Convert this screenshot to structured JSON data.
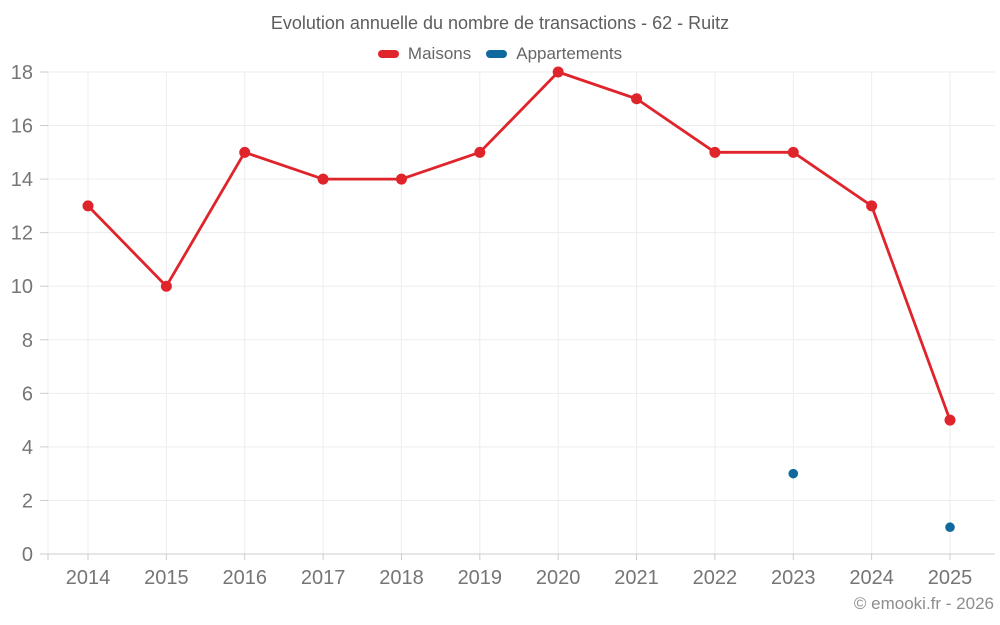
{
  "page": {
    "footer": "© emooki.fr - 2026"
  },
  "theme": {
    "background": "#ffffff",
    "grid_color": "#ededed",
    "axis_color": "#cccccc",
    "tick_label_color": "#757575",
    "title_color": "#5d5d5d",
    "legend_text_color": "#666666",
    "footer_color": "#8d8d8d"
  },
  "chart_data": {
    "type": "line",
    "title": "Evolution annuelle du nombre de transactions - 62 - Ruitz",
    "categories": [
      "2014",
      "2015",
      "2016",
      "2017",
      "2018",
      "2019",
      "2020",
      "2021",
      "2022",
      "2023",
      "2024",
      "2025"
    ],
    "series": [
      {
        "name": "Maisons",
        "color": "#e0242b",
        "style": "line-markers",
        "values": [
          13,
          10,
          15,
          14,
          14,
          15,
          18,
          17,
          15,
          15,
          13,
          5
        ]
      },
      {
        "name": "Appartements",
        "color": "#10699e",
        "style": "markers",
        "values": [
          null,
          null,
          null,
          null,
          null,
          null,
          null,
          null,
          null,
          3,
          null,
          1
        ]
      }
    ],
    "ylim": [
      0,
      18
    ],
    "ytick_step": 2,
    "grid": true,
    "legend_position": "top",
    "xlabel": "",
    "ylabel": ""
  }
}
